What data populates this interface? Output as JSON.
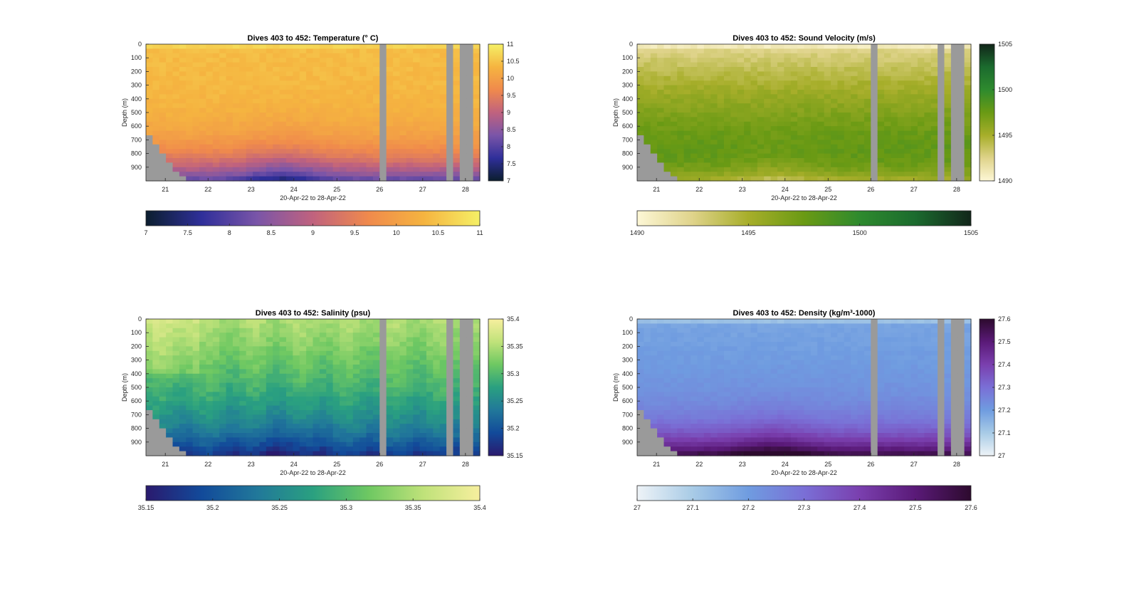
{
  "figure": {
    "x_label": "20-Apr-22 to 28-Apr-22",
    "y_label": "Depth (m)",
    "x_ticks": [
      "21",
      "22",
      "23",
      "24",
      "25",
      "26",
      "27",
      "28"
    ],
    "y_ticks": [
      "0",
      "100",
      "200",
      "300",
      "400",
      "500",
      "600",
      "700",
      "800",
      "900"
    ]
  },
  "chart_data": [
    {
      "type": "heatmap",
      "title": "Dives 403 to 452: Temperature (° C)",
      "xlabel": "20-Apr-22 to 28-Apr-22",
      "ylabel": "Depth (m)",
      "x_range": [
        "20-Apr-22",
        "28-Apr-22"
      ],
      "y_range": [
        0,
        1000
      ],
      "y_reversed": true,
      "colorbar_range": [
        7,
        11
      ],
      "colorbar_ticks": [
        "7",
        "7.5",
        "8",
        "8.5",
        "9",
        "9.5",
        "10",
        "10.5",
        "11"
      ],
      "colormap": [
        "#0b1e2e",
        "#2f2f9a",
        "#7a55a8",
        "#c0627e",
        "#f08a4c",
        "#f5b440",
        "#f5f066"
      ],
      "grid": false
    },
    {
      "type": "heatmap",
      "title": "Dives 403 to 452: Sound Velocity (m/s)",
      "xlabel": "20-Apr-22 to 28-Apr-22",
      "ylabel": "Depth (m)",
      "x_range": [
        "20-Apr-22",
        "28-Apr-22"
      ],
      "y_range": [
        0,
        1000
      ],
      "y_reversed": true,
      "colorbar_range": [
        1490,
        1505
      ],
      "colorbar_ticks": [
        "1490",
        "1495",
        "1500",
        "1505"
      ],
      "colormap": [
        "#fdf7d6",
        "#dfd38a",
        "#a7ae2a",
        "#6a9a14",
        "#2e8a2e",
        "#1b6b2e",
        "#12261a"
      ],
      "grid": false
    },
    {
      "type": "heatmap",
      "title": "Dives 403 to 452: Salinity (psu)",
      "xlabel": "20-Apr-22 to 28-Apr-22",
      "ylabel": "Depth (m)",
      "x_range": [
        "20-Apr-22",
        "28-Apr-22"
      ],
      "y_range": [
        0,
        1000
      ],
      "y_reversed": true,
      "colorbar_range": [
        35.15,
        35.4
      ],
      "colorbar_ticks": [
        "35.15",
        "35.2",
        "35.25",
        "35.3",
        "35.35",
        "35.4"
      ],
      "colormap": [
        "#2a1a6e",
        "#124a9a",
        "#21789a",
        "#2aa080",
        "#6ec862",
        "#c0e27a",
        "#f7ef9e"
      ],
      "grid": false
    },
    {
      "type": "heatmap",
      "title": "Dives 403 to 452: Density (kg/m³-1000)",
      "xlabel": "20-Apr-22 to 28-Apr-22",
      "ylabel": "Depth (m)",
      "x_range": [
        "20-Apr-22",
        "28-Apr-22"
      ],
      "y_range": [
        0,
        1000
      ],
      "y_reversed": true,
      "colorbar_range": [
        27,
        27.6
      ],
      "colorbar_ticks": [
        "27",
        "27.1",
        "27.2",
        "27.3",
        "27.4",
        "27.5",
        "27.6"
      ],
      "colormap": [
        "#eef3f7",
        "#a8cbe6",
        "#6f9ce0",
        "#7a6fd6",
        "#7a3fae",
        "#5a1a78",
        "#2d0a2e"
      ],
      "grid": false
    }
  ]
}
